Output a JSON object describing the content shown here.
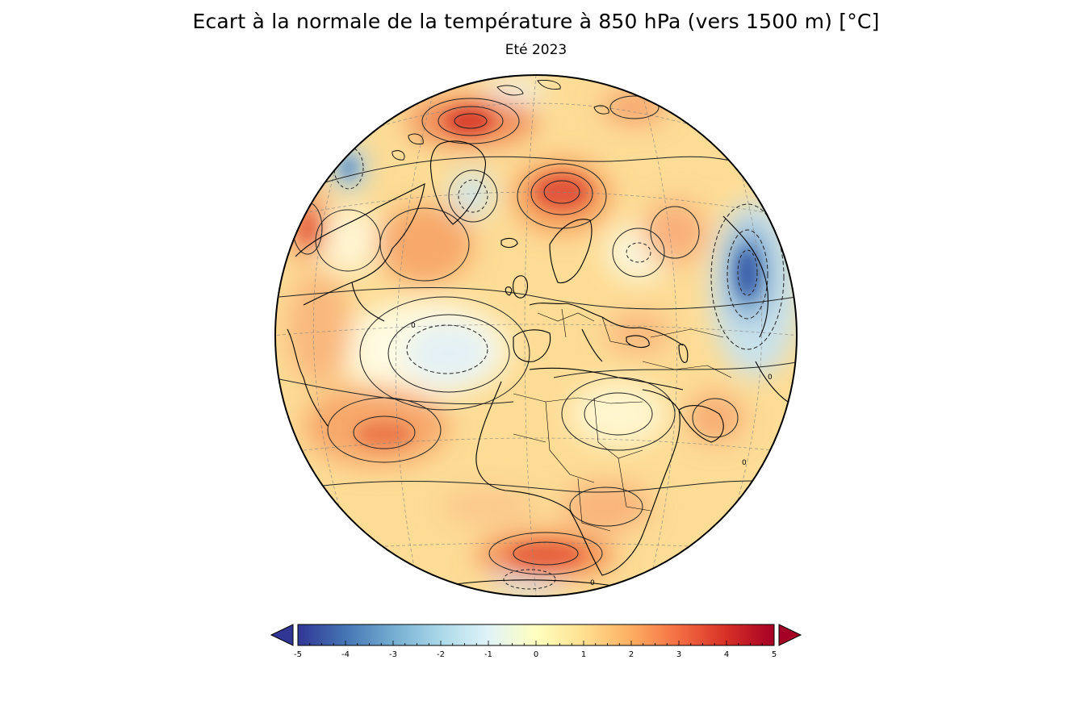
{
  "header": {
    "title": "Ecart à la normale de la température à 850 hPa (vers 1500 m)  [°C]",
    "subtitle": "Eté 2023"
  },
  "map": {
    "projection": "orthographic",
    "contour_labels": [
      "0",
      "0",
      "0",
      "0"
    ]
  },
  "colorbar": {
    "min": -5,
    "max": 5,
    "ticks": [
      "-5",
      "-4",
      "-3",
      "-2",
      "-1",
      "0",
      "1",
      "2",
      "3",
      "4",
      "5"
    ],
    "minor_ticks_per_unit": 4,
    "extend": "both",
    "colors": [
      "#313695",
      "#4575b4",
      "#74add1",
      "#abd9e9",
      "#e0f3f8",
      "#ffffbf",
      "#fee090",
      "#fdae61",
      "#f46d43",
      "#d73027",
      "#a50026"
    ],
    "low_arrow_color": "#313695",
    "high_arrow_color": "#a50026"
  }
}
